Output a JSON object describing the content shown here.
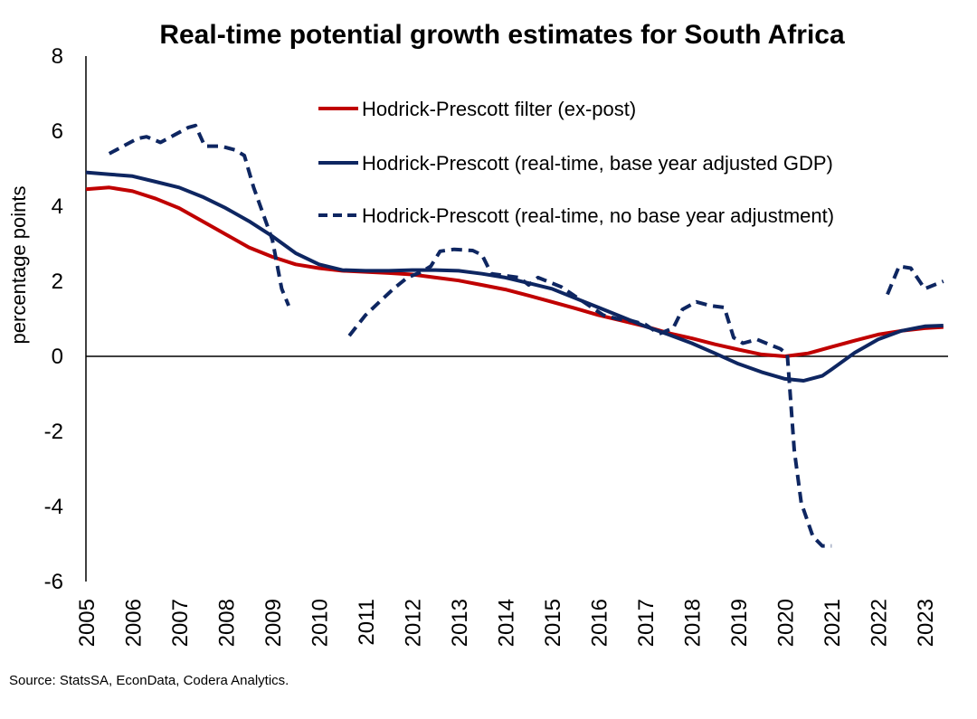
{
  "chart_data": {
    "type": "line",
    "title": "Real-time potential growth estimates for South Africa",
    "ylabel": "percentage points",
    "xlabel": "",
    "ylim": [
      -6,
      8
    ],
    "yticks": [
      "8",
      "6",
      "4",
      "2",
      "0",
      "-2",
      "-4",
      "-6"
    ],
    "xlim": [
      2005,
      2023.5
    ],
    "xticks": [
      "2005",
      "2006",
      "2007",
      "2008",
      "2009",
      "2010",
      "2011",
      "2012",
      "2013",
      "2014",
      "2015",
      "2016",
      "2017",
      "2018",
      "2019",
      "2020",
      "2021",
      "2022",
      "2023"
    ],
    "legend_position": "top-right",
    "series": [
      {
        "name": "Hodrick-Prescott filter (ex-post)",
        "color": "#c00000",
        "style": "solid",
        "points": [
          [
            2005,
            4.45
          ],
          [
            2005.5,
            4.5
          ],
          [
            2006,
            4.4
          ],
          [
            2006.5,
            4.2
          ],
          [
            2007,
            3.95
          ],
          [
            2007.5,
            3.6
          ],
          [
            2008,
            3.25
          ],
          [
            2008.5,
            2.9
          ],
          [
            2009,
            2.65
          ],
          [
            2009.5,
            2.45
          ],
          [
            2010,
            2.35
          ],
          [
            2010.5,
            2.28
          ],
          [
            2011,
            2.25
          ],
          [
            2011.5,
            2.22
          ],
          [
            2012,
            2.18
          ],
          [
            2012.5,
            2.1
          ],
          [
            2013,
            2.02
          ],
          [
            2013.5,
            1.9
          ],
          [
            2014,
            1.78
          ],
          [
            2014.5,
            1.62
          ],
          [
            2015,
            1.45
          ],
          [
            2015.5,
            1.28
          ],
          [
            2016,
            1.1
          ],
          [
            2016.5,
            0.95
          ],
          [
            2017,
            0.8
          ],
          [
            2017.5,
            0.62
          ],
          [
            2018,
            0.48
          ],
          [
            2018.5,
            0.32
          ],
          [
            2019,
            0.18
          ],
          [
            2019.5,
            0.05
          ],
          [
            2020,
            0.0
          ],
          [
            2020.5,
            0.08
          ],
          [
            2021,
            0.25
          ],
          [
            2021.5,
            0.42
          ],
          [
            2022,
            0.58
          ],
          [
            2022.5,
            0.68
          ],
          [
            2023,
            0.75
          ],
          [
            2023.4,
            0.78
          ]
        ]
      },
      {
        "name": "Hodrick-Prescott (real-time, base year adjusted GDP)",
        "color": "#0e2661",
        "style": "solid",
        "points": [
          [
            2005,
            4.9
          ],
          [
            2005.5,
            4.85
          ],
          [
            2006,
            4.8
          ],
          [
            2006.5,
            4.65
          ],
          [
            2007,
            4.5
          ],
          [
            2007.5,
            4.25
          ],
          [
            2008,
            3.95
          ],
          [
            2008.5,
            3.6
          ],
          [
            2009,
            3.2
          ],
          [
            2009.5,
            2.75
          ],
          [
            2010,
            2.45
          ],
          [
            2010.5,
            2.3
          ],
          [
            2011,
            2.28
          ],
          [
            2011.5,
            2.28
          ],
          [
            2012,
            2.3
          ],
          [
            2012.5,
            2.3
          ],
          [
            2013,
            2.28
          ],
          [
            2013.5,
            2.2
          ],
          [
            2014,
            2.1
          ],
          [
            2014.5,
            1.95
          ],
          [
            2015,
            1.8
          ],
          [
            2015.5,
            1.55
          ],
          [
            2016,
            1.3
          ],
          [
            2016.5,
            1.05
          ],
          [
            2017,
            0.8
          ],
          [
            2017.5,
            0.58
          ],
          [
            2018,
            0.35
          ],
          [
            2018.5,
            0.08
          ],
          [
            2019,
            -0.2
          ],
          [
            2019.5,
            -0.42
          ],
          [
            2020,
            -0.6
          ],
          [
            2020.4,
            -0.65
          ],
          [
            2020.8,
            -0.52
          ],
          [
            2021,
            -0.35
          ],
          [
            2021.5,
            0.1
          ],
          [
            2022,
            0.45
          ],
          [
            2022.5,
            0.68
          ],
          [
            2023,
            0.8
          ],
          [
            2023.4,
            0.82
          ]
        ]
      },
      {
        "name": "Hodrick-Prescott (real-time, no base year adjustment)",
        "color": "#0e2661",
        "style": "dashed",
        "segments": [
          [
            [
              2005.5,
              5.4
            ],
            [
              2005.8,
              5.6
            ],
            [
              2006.1,
              5.8
            ],
            [
              2006.3,
              5.85
            ],
            [
              2006.6,
              5.7
            ],
            [
              2006.9,
              5.9
            ],
            [
              2007.2,
              6.1
            ],
            [
              2007.35,
              6.15
            ],
            [
              2007.55,
              5.6
            ],
            [
              2007.9,
              5.6
            ],
            [
              2008.2,
              5.5
            ],
            [
              2008.4,
              5.35
            ],
            [
              2008.6,
              4.5
            ],
            [
              2008.8,
              3.8
            ],
            [
              2009.0,
              3.1
            ],
            [
              2009.2,
              1.8
            ],
            [
              2009.35,
              1.35
            ]
          ],
          [
            [
              2010.65,
              0.55
            ],
            [
              2011.0,
              1.1
            ],
            [
              2011.3,
              1.45
            ],
            [
              2011.6,
              1.8
            ],
            [
              2011.9,
              2.1
            ],
            [
              2012.2,
              2.25
            ],
            [
              2012.4,
              2.4
            ],
            [
              2012.6,
              2.8
            ],
            [
              2012.9,
              2.85
            ],
            [
              2013.3,
              2.82
            ],
            [
              2013.5,
              2.7
            ],
            [
              2013.7,
              2.2
            ],
            [
              2014.0,
              2.15
            ],
            [
              2014.3,
              2.1
            ],
            [
              2014.5,
              1.9
            ],
            [
              2014.7,
              2.1
            ],
            [
              2015.2,
              1.85
            ],
            [
              2015.5,
              1.6
            ],
            [
              2015.8,
              1.35
            ],
            [
              2016.1,
              1.1
            ],
            [
              2016.4,
              1.0
            ],
            [
              2016.7,
              0.95
            ],
            [
              2017.0,
              0.85
            ],
            [
              2017.3,
              0.6
            ],
            [
              2017.6,
              0.75
            ],
            [
              2017.8,
              1.25
            ],
            [
              2018.1,
              1.45
            ],
            [
              2018.4,
              1.35
            ],
            [
              2018.7,
              1.3
            ],
            [
              2018.9,
              0.5
            ],
            [
              2019.1,
              0.35
            ],
            [
              2019.4,
              0.45
            ],
            [
              2019.7,
              0.3
            ],
            [
              2019.9,
              0.2
            ],
            [
              2020.05,
              0.05
            ],
            [
              2020.1,
              -0.8
            ],
            [
              2020.2,
              -2.5
            ],
            [
              2020.35,
              -3.9
            ],
            [
              2020.6,
              -4.8
            ],
            [
              2020.8,
              -5.05
            ],
            [
              2021.0,
              -5.05
            ]
          ],
          [
            [
              2022.2,
              1.65
            ],
            [
              2022.45,
              2.4
            ],
            [
              2022.7,
              2.35
            ],
            [
              2023.0,
              1.8
            ],
            [
              2023.4,
              2.0
            ]
          ]
        ]
      }
    ],
    "zero_line": true
  },
  "source": "Source: StatsSA, EconData, Codera Analytics."
}
